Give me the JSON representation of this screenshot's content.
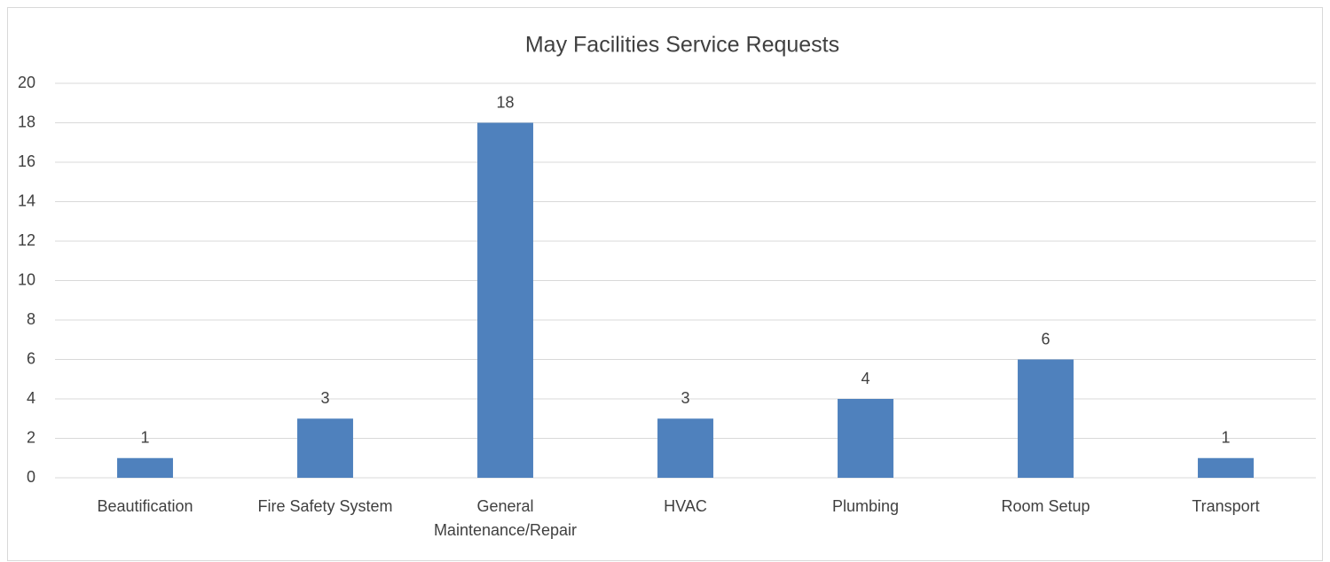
{
  "chart_data": {
    "type": "bar",
    "title": "May Facilities Service Requests",
    "categories": [
      "Beautification",
      "Fire Safety System",
      "General Maintenance/Repair",
      "HVAC",
      "Plumbing",
      "Room Setup",
      "Transport"
    ],
    "values": [
      1,
      3,
      18,
      3,
      4,
      6,
      1
    ],
    "color": "#4f81bd",
    "ylim": [
      0,
      20
    ],
    "yticks": [
      0,
      2,
      4,
      6,
      8,
      10,
      12,
      14,
      16,
      18,
      20
    ],
    "grid": true
  }
}
